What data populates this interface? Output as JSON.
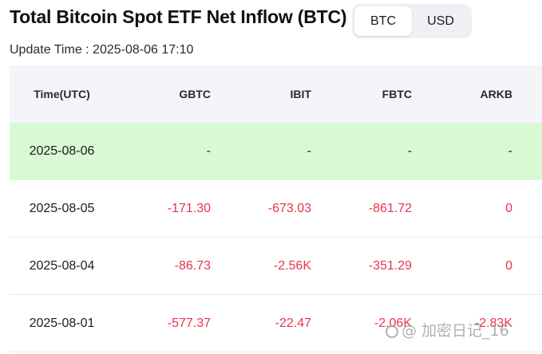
{
  "title": "Total Bitcoin Spot ETF Net Inflow (BTC)",
  "toggle": {
    "options": [
      "BTC",
      "USD"
    ],
    "selected": "BTC"
  },
  "update_time": "Update Time : 2025-08-06 17:10",
  "table": {
    "headers": [
      "Time(UTC)",
      "GBTC",
      "IBIT",
      "FBTC",
      "ARKB"
    ],
    "rows": [
      [
        "2025-08-06",
        "-",
        "-",
        "-",
        "-"
      ],
      [
        "2025-08-05",
        "-171.30",
        "-673.03",
        "-861.72",
        "0"
      ],
      [
        "2025-08-04",
        "-86.73",
        "-2.56K",
        "-351.29",
        "0"
      ],
      [
        "2025-08-01",
        "-577.37",
        "-22.47",
        "-2.06K",
        "-2.83K"
      ]
    ]
  },
  "watermark": "@ 加密日记_16",
  "colors": {
    "negative": "#e8344e",
    "highlight_row": "#d9f8d4",
    "header_bg": "#f4f5f8"
  }
}
